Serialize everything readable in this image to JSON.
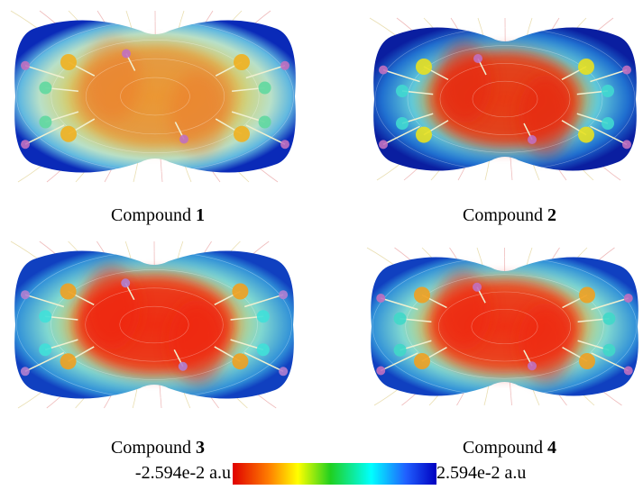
{
  "panels": [
    {
      "label": "Compound",
      "number": "1"
    },
    {
      "label": "Compound",
      "number": "2"
    },
    {
      "label": "Compound",
      "number": "3"
    },
    {
      "label": "Compound",
      "number": "4"
    }
  ],
  "colorbar": {
    "min_label": "-2.594e-2 a.u",
    "max_label": "2.594e-2 a.u"
  }
}
